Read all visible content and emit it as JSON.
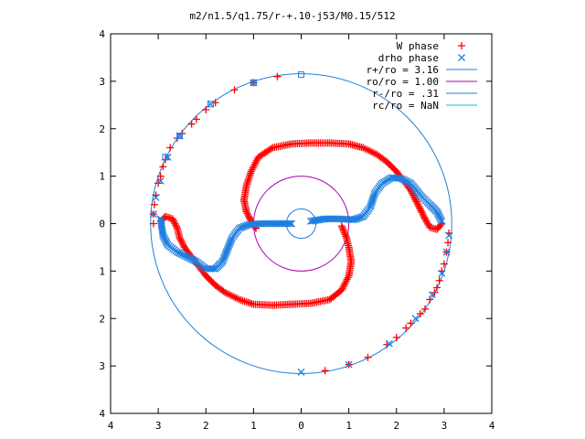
{
  "chart_data": {
    "type": "scatter",
    "title": "m2/n1.5/q1.75/r-+.10-j53/M0.15/512",
    "xlim": [
      -4,
      4
    ],
    "ylim": [
      -4,
      4
    ],
    "x_ticks": [
      -4,
      -3,
      -2,
      -1,
      0,
      1,
      2,
      3,
      4
    ],
    "x_tick_labels": [
      "4",
      "3",
      "2",
      "1",
      "0",
      "1",
      "2",
      "3",
      "4"
    ],
    "y_ticks": [
      -4,
      -3,
      -2,
      -1,
      0,
      1,
      2,
      3,
      4
    ],
    "y_tick_labels": [
      "4",
      "3",
      "2",
      "1",
      "0",
      "1",
      "2",
      "3",
      "4"
    ],
    "grid": false,
    "legend_position": "top-right",
    "series": [
      {
        "name": "W phase",
        "kind": "points",
        "marker": "+",
        "color": "#ff0000",
        "points": [
          [
            -0.5,
            3.1
          ],
          [
            -1.0,
            2.97
          ],
          [
            -1.4,
            2.82
          ],
          [
            -1.8,
            2.55
          ],
          [
            -2.0,
            2.4
          ],
          [
            -2.2,
            2.2
          ],
          [
            -2.3,
            2.1
          ],
          [
            -2.5,
            1.9
          ],
          [
            -2.6,
            1.8
          ],
          [
            -2.75,
            1.6
          ],
          [
            -2.85,
            1.35
          ],
          [
            -2.9,
            1.2
          ],
          [
            -2.95,
            1.0
          ],
          [
            -3.0,
            0.85
          ],
          [
            -3.05,
            0.6
          ],
          [
            -3.08,
            0.4
          ],
          [
            -3.1,
            0.2
          ],
          [
            -3.1,
            0.0
          ],
          [
            0.5,
            -3.1
          ],
          [
            1.0,
            -2.97
          ],
          [
            1.4,
            -2.82
          ],
          [
            1.8,
            -2.55
          ],
          [
            2.0,
            -2.4
          ],
          [
            2.2,
            -2.2
          ],
          [
            2.3,
            -2.1
          ],
          [
            2.5,
            -1.9
          ],
          [
            2.6,
            -1.8
          ],
          [
            2.7,
            -1.6
          ],
          [
            2.8,
            -1.45
          ],
          [
            2.85,
            -1.35
          ],
          [
            2.9,
            -1.2
          ],
          [
            2.95,
            -1.0
          ],
          [
            3.0,
            -0.85
          ],
          [
            3.05,
            -0.6
          ],
          [
            3.08,
            -0.4
          ],
          [
            3.1,
            -0.2
          ]
        ],
        "curves": [
          [
            [
              -2.95,
              0.05
            ],
            [
              -2.85,
              0.15
            ],
            [
              -2.7,
              0.1
            ],
            [
              -2.6,
              -0.1
            ],
            [
              -2.55,
              -0.3
            ],
            [
              -2.45,
              -0.5
            ],
            [
              -2.3,
              -0.7
            ],
            [
              -2.15,
              -0.9
            ],
            [
              -2.0,
              -1.1
            ],
            [
              -1.8,
              -1.3
            ],
            [
              -1.6,
              -1.45
            ],
            [
              -1.3,
              -1.6
            ],
            [
              -1.0,
              -1.7
            ],
            [
              -0.6,
              -1.72
            ],
            [
              -0.2,
              -1.7
            ],
            [
              0.2,
              -1.68
            ],
            [
              0.6,
              -1.6
            ],
            [
              0.85,
              -1.4
            ],
            [
              1.0,
              -1.1
            ],
            [
              1.05,
              -0.8
            ],
            [
              1.0,
              -0.5
            ],
            [
              0.95,
              -0.3
            ],
            [
              0.85,
              -0.05
            ]
          ],
          [
            [
              2.95,
              0.0
            ],
            [
              2.85,
              -0.12
            ],
            [
              2.7,
              -0.08
            ],
            [
              2.6,
              0.1
            ],
            [
              2.5,
              0.3
            ],
            [
              2.4,
              0.5
            ],
            [
              2.3,
              0.7
            ],
            [
              2.15,
              0.9
            ],
            [
              2.0,
              1.1
            ],
            [
              1.8,
              1.3
            ],
            [
              1.6,
              1.45
            ],
            [
              1.3,
              1.6
            ],
            [
              1.0,
              1.68
            ],
            [
              0.6,
              1.7
            ],
            [
              0.2,
              1.7
            ],
            [
              -0.2,
              1.68
            ],
            [
              -0.6,
              1.6
            ],
            [
              -0.9,
              1.4
            ],
            [
              -1.05,
              1.1
            ],
            [
              -1.15,
              0.8
            ],
            [
              -1.2,
              0.5
            ],
            [
              -1.15,
              0.25
            ],
            [
              -1.05,
              0.05
            ],
            [
              -0.95,
              -0.1
            ]
          ]
        ]
      },
      {
        "name": "drho phase",
        "kind": "points",
        "marker": "x",
        "color": "#1e7fe0",
        "points": [
          [
            -1.0,
            2.97
          ],
          [
            -1.9,
            2.52
          ],
          [
            -2.55,
            1.85
          ],
          [
            -2.8,
            1.4
          ],
          [
            -2.95,
            0.9
          ],
          [
            -3.05,
            0.55
          ],
          [
            -3.1,
            0.2
          ],
          [
            0.0,
            -3.13
          ],
          [
            1.0,
            -2.97
          ],
          [
            1.85,
            -2.53
          ],
          [
            2.4,
            -2.0
          ],
          [
            2.75,
            -1.5
          ],
          [
            2.95,
            -1.05
          ],
          [
            3.05,
            -0.6
          ],
          [
            3.1,
            -0.25
          ]
        ],
        "curves": [
          [
            [
              -2.95,
              0.1
            ],
            [
              -2.9,
              -0.25
            ],
            [
              -2.8,
              -0.45
            ],
            [
              -2.6,
              -0.6
            ],
            [
              -2.4,
              -0.7
            ],
            [
              -2.2,
              -0.8
            ],
            [
              -2.0,
              -0.95
            ],
            [
              -1.8,
              -0.95
            ],
            [
              -1.65,
              -0.8
            ],
            [
              -1.55,
              -0.55
            ],
            [
              -1.45,
              -0.3
            ],
            [
              -1.3,
              -0.1
            ],
            [
              -1.1,
              -0.02
            ],
            [
              -0.8,
              0.0
            ],
            [
              -0.5,
              0.0
            ],
            [
              -0.2,
              0.0
            ]
          ],
          [
            [
              0.2,
              0.05
            ],
            [
              0.5,
              0.1
            ],
            [
              0.8,
              0.1
            ],
            [
              1.1,
              0.08
            ],
            [
              1.3,
              0.15
            ],
            [
              1.45,
              0.35
            ],
            [
              1.55,
              0.65
            ],
            [
              1.7,
              0.85
            ],
            [
              1.9,
              0.97
            ],
            [
              2.1,
              0.95
            ],
            [
              2.3,
              0.85
            ],
            [
              2.5,
              0.6
            ],
            [
              2.7,
              0.4
            ],
            [
              2.85,
              0.25
            ],
            [
              2.95,
              0.05
            ]
          ]
        ]
      },
      {
        "name": "r+/ro = 3.16",
        "kind": "circle",
        "radius": 3.16,
        "color": "#1e7fe0"
      },
      {
        "name": "ro/ro = 1.00",
        "kind": "circle",
        "radius": 1.0,
        "color": "#b000b0"
      },
      {
        "name": "r-/ro = .31",
        "kind": "circle",
        "radius": 0.31,
        "color": "#1e7fe0"
      },
      {
        "name": "rc/ro = NaN",
        "kind": "circle",
        "radius": null,
        "color": "#00c8c8"
      }
    ],
    "square_markers": [
      [
        0.0,
        3.14
      ],
      [
        -1.0,
        2.97
      ],
      [
        -1.9,
        2.52
      ],
      [
        -2.55,
        1.85
      ],
      [
        -2.85,
        1.4
      ]
    ]
  }
}
